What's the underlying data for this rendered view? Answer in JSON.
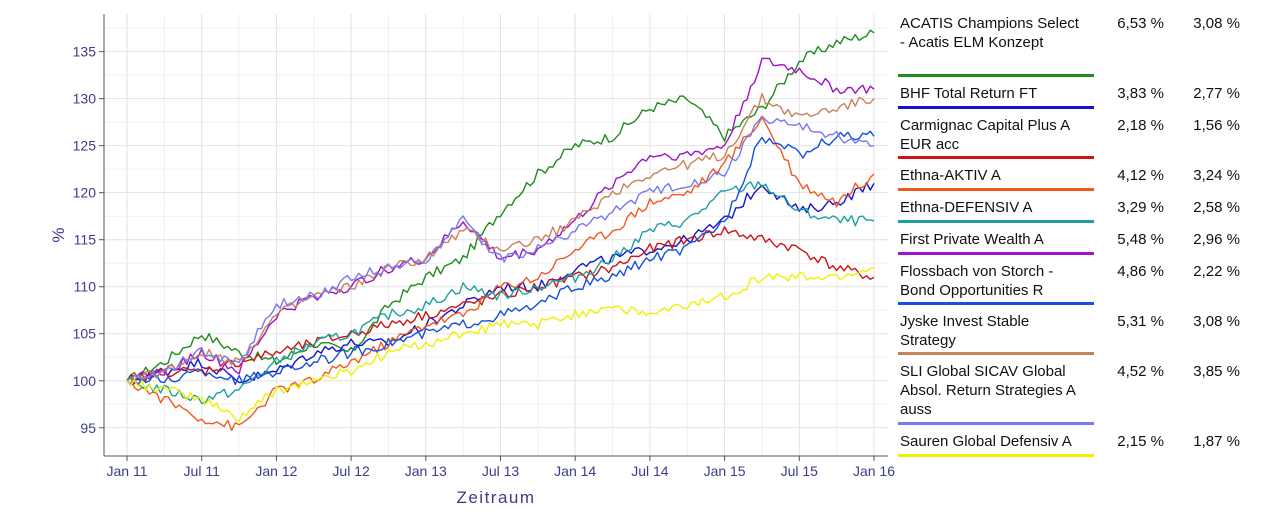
{
  "chart_data": {
    "type": "line",
    "title": "",
    "xlabel": "Zeitraum",
    "ylabel": "%",
    "x_ticks": [
      "Jan 11",
      "Jul 11",
      "Jan 12",
      "Jul 12",
      "Jan 13",
      "Jul 13",
      "Jan 14",
      "Jul 14",
      "Jan 15",
      "Jul 15",
      "Jan 16"
    ],
    "y_ticks": [
      95,
      100,
      105,
      110,
      115,
      120,
      125,
      130,
      135
    ],
    "ylim": [
      92,
      139
    ],
    "grid": true,
    "legend_position": "right",
    "series": [
      {
        "name": "ACATIS Champions Select - Acatis ELM Konzept",
        "v1": "6,53 %",
        "v2": "3,08 %",
        "color": "#1e8c1e",
        "values": [
          100,
          102,
          105,
          103,
          102,
          104,
          103,
          108,
          111,
          113,
          118,
          122,
          125,
          126,
          129,
          130,
          126,
          129,
          134,
          136,
          137
        ]
      },
      {
        "name": "BHF Total Return FT",
        "v1": "3,83 %",
        "v2": "2,77 %",
        "color": "#1414cc",
        "values": [
          100,
          101,
          102,
          100,
          101,
          103,
          104,
          104,
          106,
          108,
          110,
          110,
          112,
          113,
          114,
          115,
          117,
          121,
          118,
          119,
          121
        ]
      },
      {
        "name": "Carmignac Capital Plus A EUR acc",
        "v1": "2,18 %",
        "v2": "1,56 %",
        "color": "#cc1414",
        "values": [
          100,
          101,
          101,
          102,
          103,
          104,
          105,
          106,
          107,
          108,
          109,
          110,
          111,
          112,
          114,
          115,
          116,
          115,
          114,
          112,
          111
        ]
      },
      {
        "name": "Ethna-AKTIV A",
        "v1": "4,12 %",
        "v2": "3,24 %",
        "color": "#f05a1e",
        "values": [
          100,
          98,
          96,
          95,
          99,
          100,
          102,
          104,
          106,
          107,
          110,
          111,
          114,
          116,
          119,
          120,
          123,
          128,
          121,
          119,
          122
        ]
      },
      {
        "name": "Ethna-DEFENSIV A",
        "v1": "3,29 %",
        "v2": "2,58 %",
        "color": "#1ea0a0",
        "values": [
          100,
          99,
          98,
          99,
          102,
          104,
          105,
          107,
          108,
          110,
          109,
          110,
          111,
          113,
          116,
          117,
          120,
          121,
          118,
          117,
          117
        ]
      },
      {
        "name": "First Private Wealth A",
        "v1": "5,48 %",
        "v2": "2,96 %",
        "color": "#a014c8",
        "values": [
          100,
          101,
          103,
          101,
          107,
          109,
          110,
          112,
          113,
          117,
          113,
          114,
          117,
          121,
          124,
          124,
          125,
          134,
          133,
          131,
          131
        ]
      },
      {
        "name": "Flossbach von Storch - Bond Opportunities R",
        "v1": "4,86 %",
        "v2": "2,22 %",
        "color": "#1450dc",
        "values": [
          100,
          100,
          101,
          100,
          101,
          102,
          103,
          104,
          105,
          106,
          107,
          108,
          110,
          111,
          113,
          114,
          117,
          126,
          124,
          126,
          126
        ]
      },
      {
        "name": "Jyske Invest Stable Strategy",
        "v1": "5,31 %",
        "v2": "3,08 %",
        "color": "#c8825a",
        "values": [
          100,
          101,
          103,
          102,
          107,
          109,
          110,
          112,
          113,
          116,
          114,
          115,
          117,
          120,
          122,
          123,
          124,
          130,
          128,
          129,
          130
        ]
      },
      {
        "name": "SLI Global SICAV Global Absol. Return Strategies A auss",
        "v1": "4,52 %",
        "v2": "3,85 %",
        "color": "#7878f0",
        "values": [
          100,
          101,
          103,
          102,
          108,
          109,
          111,
          112,
          113,
          117,
          113,
          114,
          116,
          118,
          120,
          121,
          122,
          128,
          127,
          126,
          125
        ]
      },
      {
        "name": "Sauren Global Defensiv A",
        "v1": "2,15 %",
        "v2": "1,87 %",
        "color": "#f0f000",
        "values": [
          100,
          99,
          98,
          96,
          99,
          100,
          101,
          103,
          104,
          105,
          106,
          106,
          107,
          108,
          107,
          108,
          109,
          111,
          111,
          111,
          112
        ]
      }
    ]
  }
}
